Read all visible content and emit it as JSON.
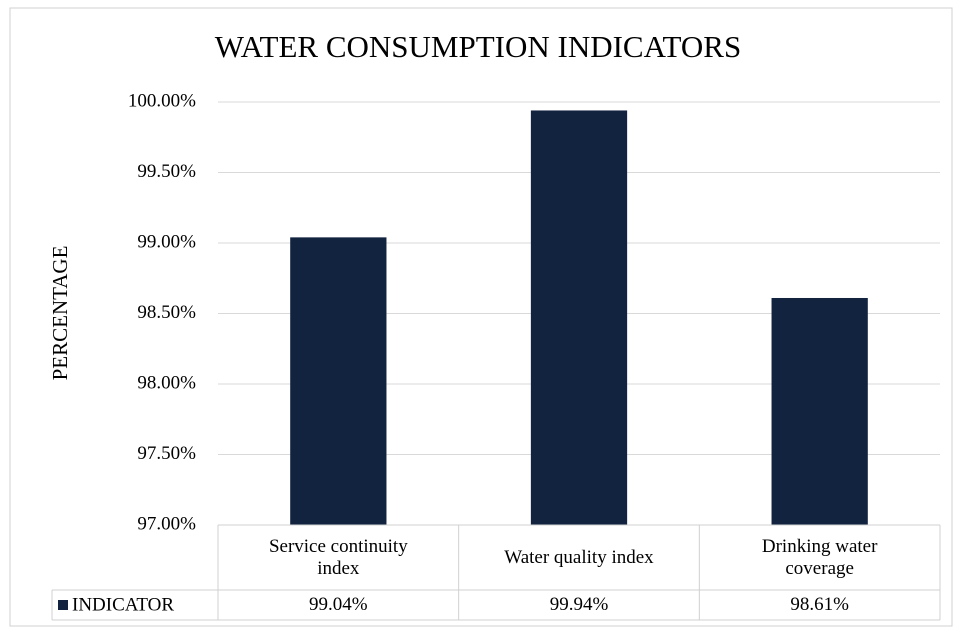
{
  "chart_data": {
    "type": "bar",
    "title": "WATER CONSUMPTION INDICATORS",
    "ylabel": "PERCENTAGE",
    "categories": [
      "Service continuity index",
      "Water quality index",
      "Drinking water coverage"
    ],
    "series": [
      {
        "name": "INDICATOR",
        "color": "#12233f",
        "values": [
          99.04,
          99.94,
          98.61
        ],
        "value_labels": [
          "99.04%",
          "99.94%",
          "98.61%"
        ]
      }
    ],
    "ylim": [
      97,
      100
    ],
    "yticks": [
      {
        "value": 97,
        "label": "97.00%"
      },
      {
        "value": 97.5,
        "label": "97.50%"
      },
      {
        "value": 98,
        "label": "98.00%"
      },
      {
        "value": 98.5,
        "label": "98.50%"
      },
      {
        "value": 99,
        "label": "99.00%"
      },
      {
        "value": 99.5,
        "label": "99.50%"
      },
      {
        "value": 100,
        "label": "100.00%"
      }
    ],
    "grid": true,
    "data_table": true
  }
}
